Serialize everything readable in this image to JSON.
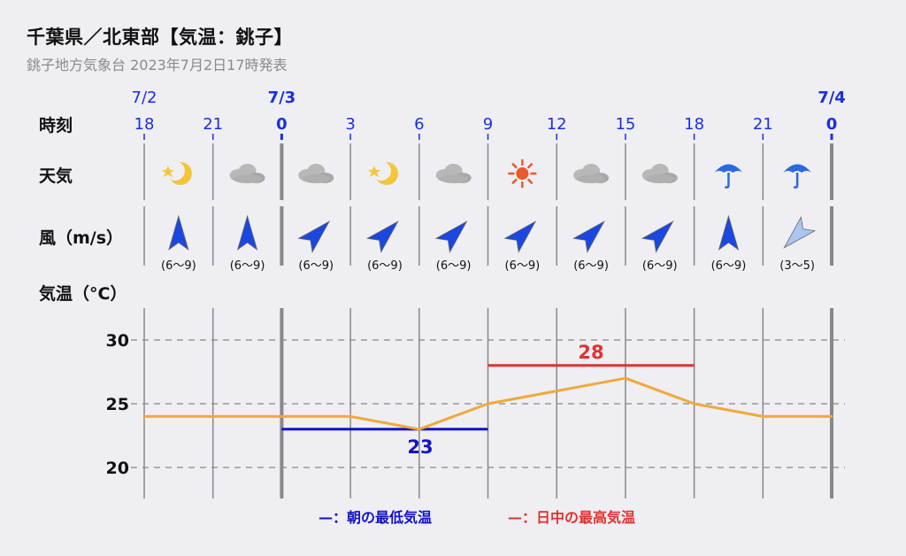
{
  "title": "千葉県／北東部【気温：銚子】",
  "subtitle": "銚子地方気象台 2023年7月2日17時発表",
  "labels": {
    "time": "時刻",
    "weather": "天気",
    "wind": "風（m/s）",
    "temp": "気温（°C）"
  },
  "colors": {
    "date_blue": "#1a2fe0",
    "line": "#f0a93c",
    "min": "#1212c8",
    "max": "#e0322f",
    "grid_dash": "#888888",
    "vline": "#888888",
    "wind_strong": "#1b46e0",
    "wind_light": "#a9c6f0"
  },
  "chart_data": {
    "type": "line",
    "title": "千葉県／北東部【気温：銚子】",
    "ylabel": "気温（°C）",
    "ylim": [
      18,
      32
    ],
    "yticks": [
      20,
      25,
      30
    ],
    "dates": [
      {
        "label": "7/2",
        "index": 0
      },
      {
        "label": "7/3",
        "index": 2
      },
      {
        "label": "7/4",
        "index": 10
      }
    ],
    "hours": [
      "18",
      "21",
      "0",
      "3",
      "6",
      "9",
      "12",
      "15",
      "18",
      "21",
      "0"
    ],
    "day_boundaries": [
      2,
      10
    ],
    "temperatures": [
      24,
      24,
      24,
      24,
      23,
      25,
      26,
      27,
      25,
      24,
      24
    ],
    "weather": [
      "moon-clear",
      "cloudy",
      "cloudy",
      "moon-clear",
      "cloudy",
      "sunny",
      "cloudy",
      "cloudy",
      "rain",
      "rain"
    ],
    "wind": [
      {
        "speed": "(6〜9)",
        "dir": "S",
        "strength": "strong"
      },
      {
        "speed": "(6〜9)",
        "dir": "S",
        "strength": "strong"
      },
      {
        "speed": "(6〜9)",
        "dir": "SW",
        "strength": "strong"
      },
      {
        "speed": "(6〜9)",
        "dir": "SW",
        "strength": "strong"
      },
      {
        "speed": "(6〜9)",
        "dir": "SW",
        "strength": "strong"
      },
      {
        "speed": "(6〜9)",
        "dir": "SW",
        "strength": "strong"
      },
      {
        "speed": "(6〜9)",
        "dir": "SW",
        "strength": "strong"
      },
      {
        "speed": "(6〜9)",
        "dir": "SW",
        "strength": "strong"
      },
      {
        "speed": "(6〜9)",
        "dir": "S",
        "strength": "strong"
      },
      {
        "speed": "(3〜5)",
        "dir": "NE",
        "strength": "light"
      }
    ],
    "min_temp": {
      "value": "23",
      "from": 2,
      "to": 5,
      "y": 23
    },
    "max_temp": {
      "value": "28",
      "from": 5,
      "to": 8,
      "y": 28
    }
  },
  "legend": {
    "min_label": "—：朝の最低気温",
    "max_label": "—：日中の最高気温"
  }
}
